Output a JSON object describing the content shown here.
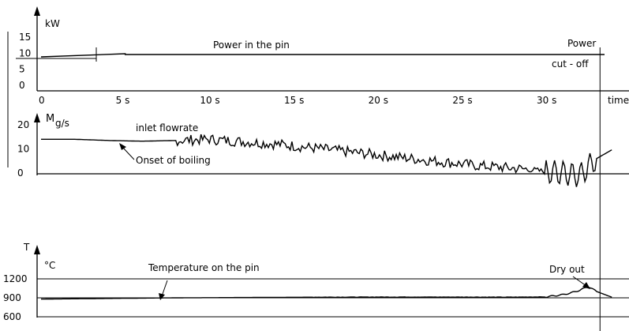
{
  "chart_data": [
    {
      "type": "line",
      "ylabel": "kW",
      "yticks": [
        "15",
        "10",
        "5",
        "0"
      ],
      "ylim": [
        0,
        20
      ],
      "xticks": [
        "0",
        "5 s",
        "10 s",
        "15 s",
        "20 s",
        "25 s",
        "30 s"
      ],
      "xlabel": "time",
      "xlim": [
        0,
        33
      ],
      "annotations": [
        "Power in the pin",
        "Power",
        "cut - off"
      ],
      "series": [
        {
          "x": [
            0,
            5,
            5,
            33.2
          ],
          "y": [
            10,
            12,
            11.5,
            11.5
          ]
        }
      ],
      "cutoff_time": 33.2
    },
    {
      "type": "line",
      "ylabel_main": "M",
      "ylabel_unit": "g/s",
      "yticks": [
        "20",
        "10",
        "0"
      ],
      "ylim": [
        0,
        25
      ],
      "annotations": [
        "inlet flowrate",
        "Onset of boiling"
      ],
      "series": [
        {
          "x": [
            0,
            2,
            4,
            6,
            8,
            10,
            12,
            14,
            16,
            18,
            20,
            22,
            24,
            26,
            28,
            29,
            30,
            31,
            32,
            33,
            34
          ],
          "y": [
            14,
            14,
            13.5,
            13.2,
            13.5,
            14,
            13,
            12,
            10.5,
            9,
            7.5,
            6,
            4.5,
            3,
            2,
            1.5,
            0.5,
            0,
            -1,
            6,
            10
          ]
        }
      ]
    },
    {
      "type": "line",
      "ylabel_main": "T",
      "ylabel_unit": "°C",
      "yticks": [
        "1200",
        "900",
        "600"
      ],
      "ylim": [
        500,
        1400
      ],
      "reference_lines": [
        1200,
        900,
        600
      ],
      "annotations": [
        "Temperature on the pin",
        "Dry out"
      ],
      "series": [
        {
          "x": [
            0,
            4,
            8,
            12,
            16,
            20,
            24,
            28,
            30,
            31,
            31.5,
            32,
            32.5,
            33,
            34
          ],
          "y": [
            880,
            890,
            900,
            905,
            910,
            912,
            912,
            910,
            915,
            950,
            980,
            1020,
            1080,
            1000,
            900
          ]
        }
      ]
    }
  ]
}
